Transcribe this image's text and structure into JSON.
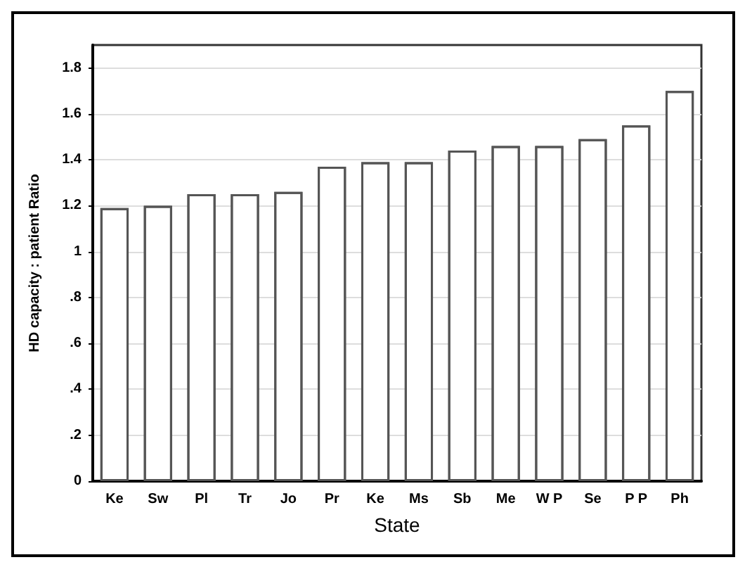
{
  "chart_data": {
    "type": "bar",
    "xlabel": "State",
    "ylabel": "HD capacity : patient Ratio",
    "categories": [
      "Ke",
      "Sw",
      "Pl",
      "Tr",
      "Jo",
      "Pr",
      "Ke",
      "Ms",
      "Sb",
      "Me",
      "W P",
      "Se",
      "P P",
      "Ph"
    ],
    "values": [
      1.19,
      1.2,
      1.25,
      1.25,
      1.26,
      1.37,
      1.39,
      1.39,
      1.44,
      1.46,
      1.46,
      1.49,
      1.55,
      1.7
    ],
    "color": "#ffffff",
    "ylim": [
      0,
      1.9
    ],
    "yticks": [
      {
        "value": 0,
        "label": "0"
      },
      {
        "value": 0.2,
        "label": ".2"
      },
      {
        "value": 0.4,
        "label": ".4"
      },
      {
        "value": 0.6,
        "label": ".6"
      },
      {
        "value": 0.8,
        "label": ".8"
      },
      {
        "value": 1,
        "label": "1"
      },
      {
        "value": 1.2,
        "label": "1.2"
      },
      {
        "value": 1.4,
        "label": "1.4"
      },
      {
        "value": 1.6,
        "label": "1.6"
      },
      {
        "value": 1.8,
        "label": "1.8"
      }
    ],
    "grid": "y"
  }
}
